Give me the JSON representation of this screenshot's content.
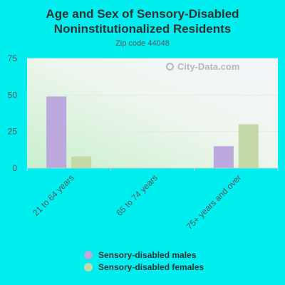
{
  "chart_data": {
    "type": "bar",
    "title": "Age and Sex of Sensory-Disabled Noninstitutionalized Residents",
    "subtitle": "Zip code 44048",
    "categories": [
      "21 to 64 years",
      "65 to 74 years",
      "75+ years and over"
    ],
    "series": [
      {
        "name": "Sensory-disabled males",
        "values": [
          49,
          0,
          15
        ],
        "color": "#bba8dd"
      },
      {
        "name": "Sensory-disabled females",
        "values": [
          8,
          0,
          30
        ],
        "color": "#c5d9a8"
      }
    ],
    "ylim": [
      0,
      75
    ],
    "yticks": [
      0,
      25,
      50,
      75
    ],
    "grid": true,
    "legend": "bottom"
  },
  "watermark": "City-Data.com",
  "colors": {
    "background": "#00eef0"
  }
}
